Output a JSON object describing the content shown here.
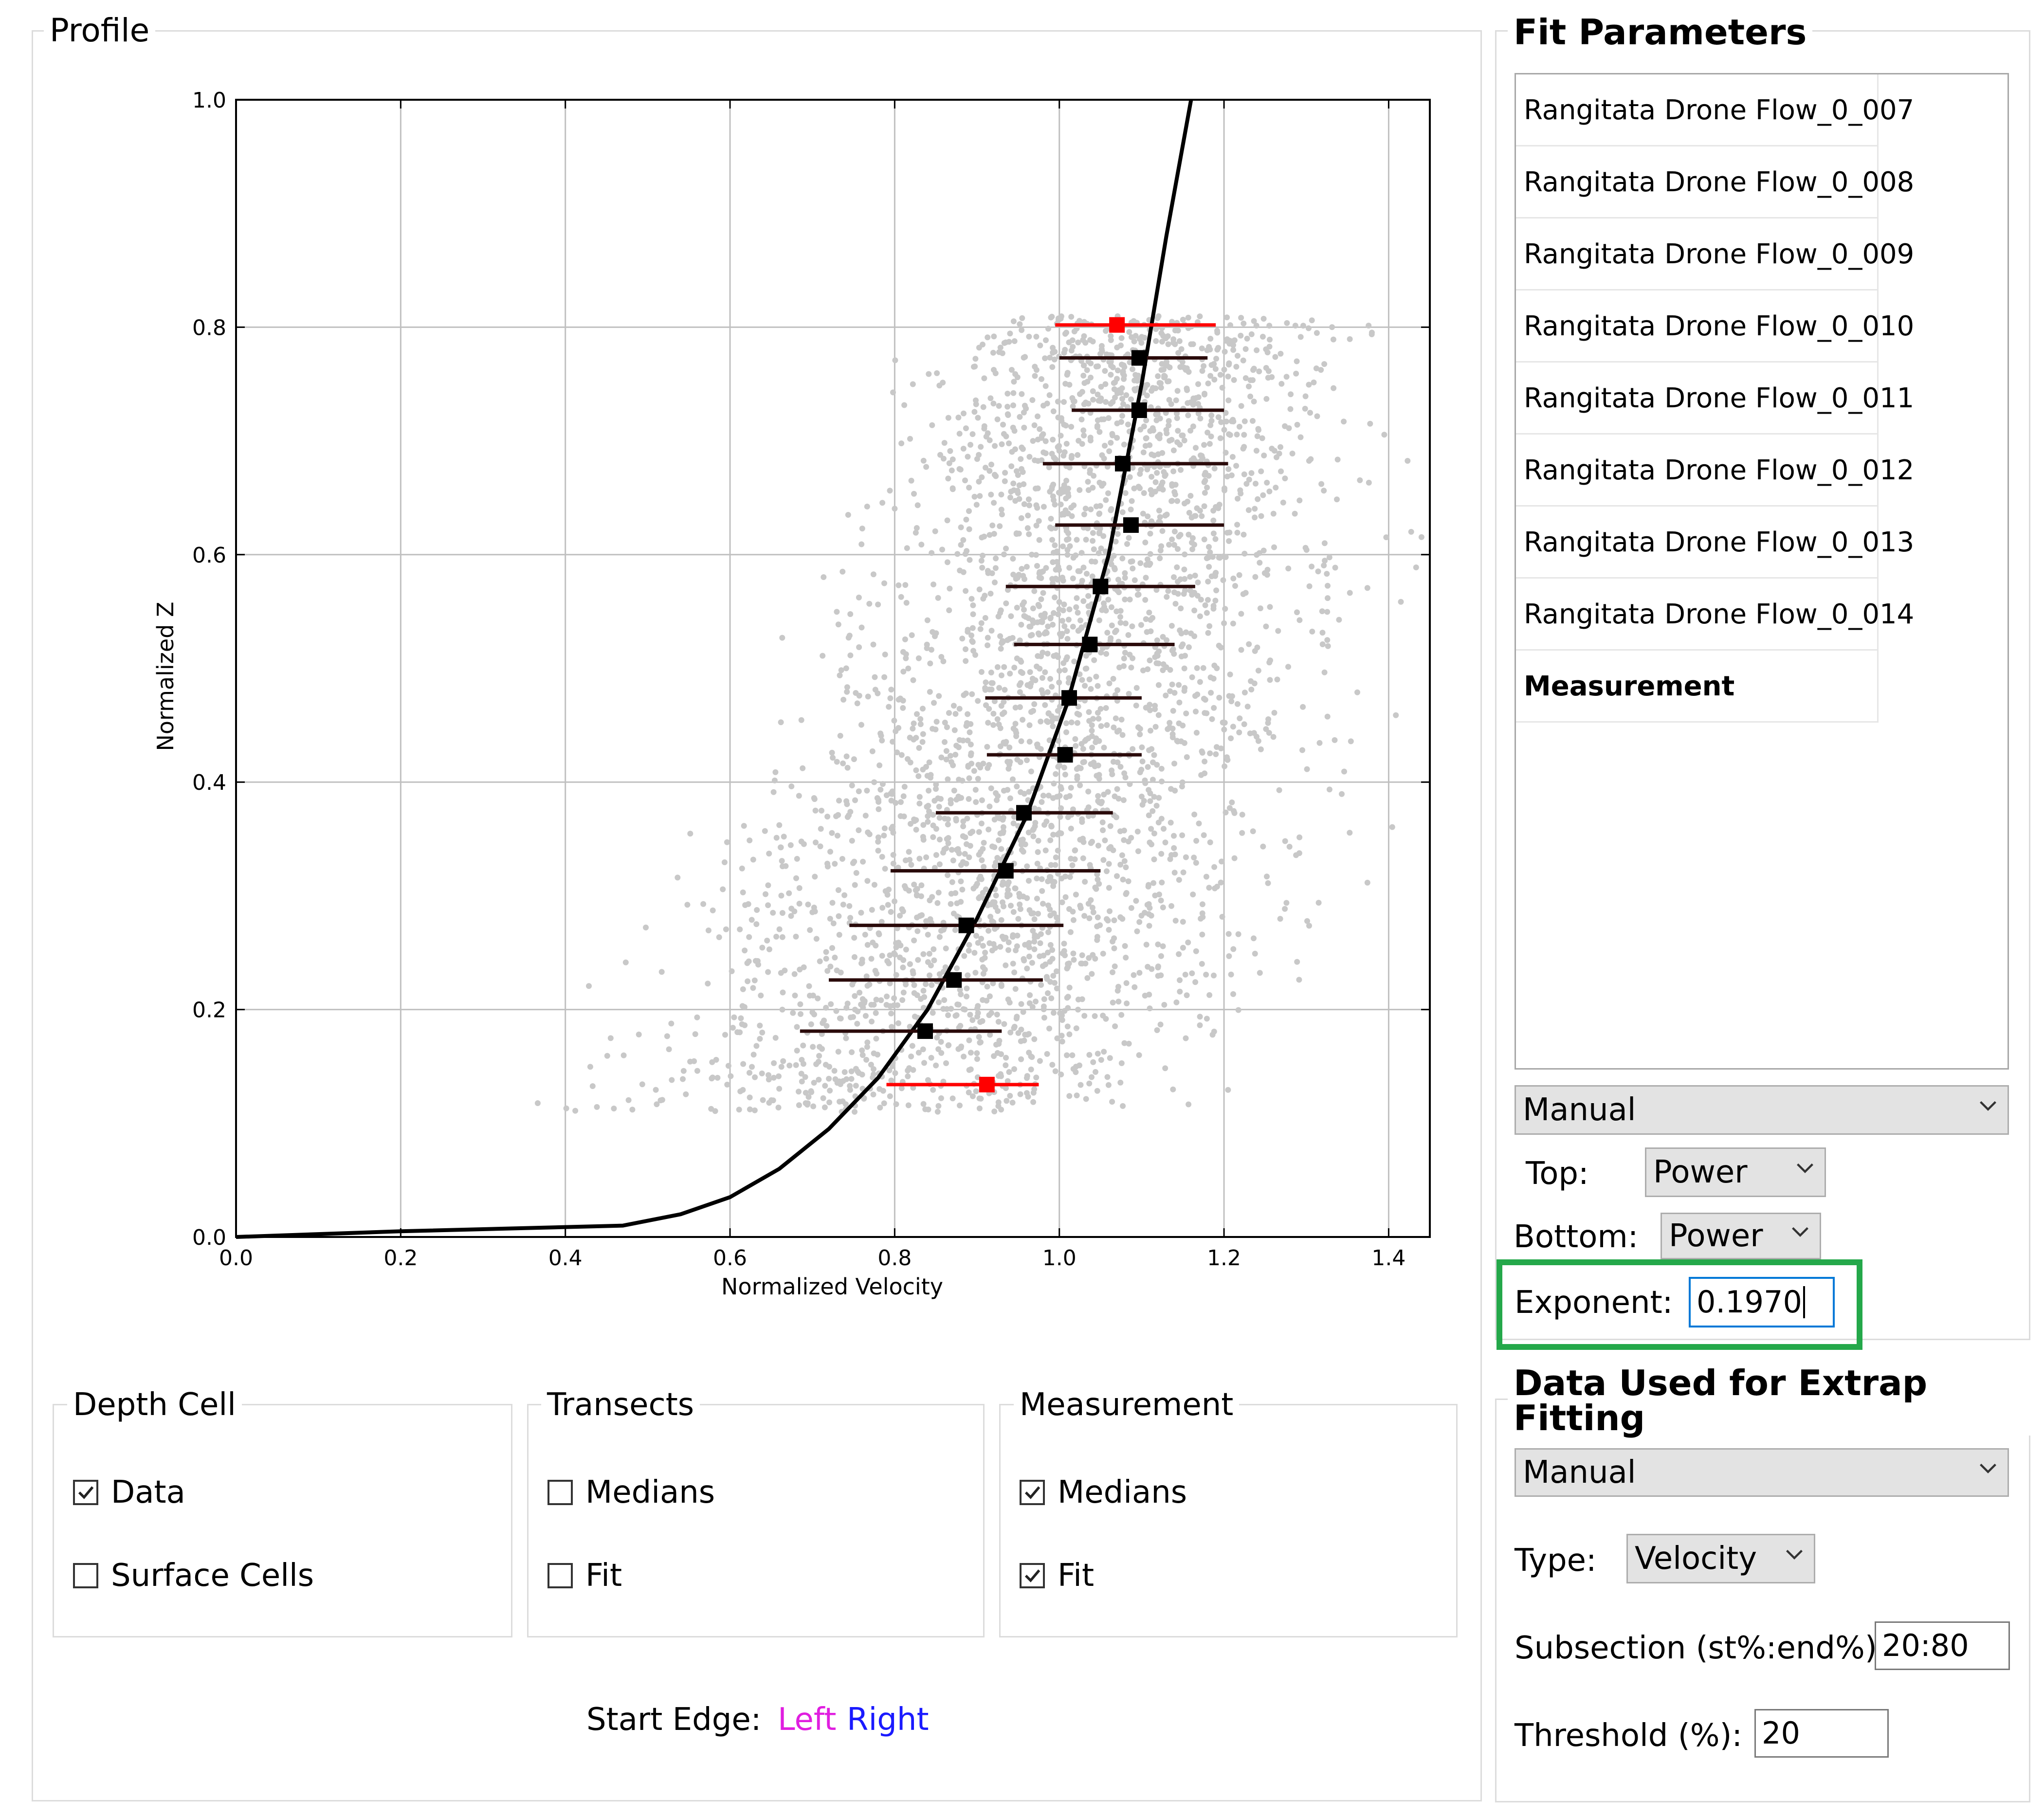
{
  "profile": {
    "title": "Profile",
    "depth_cell": {
      "title": "Depth Cell",
      "data_label": "Data",
      "data_checked": true,
      "surface_label": "Surface Cells",
      "surface_checked": false
    },
    "transects": {
      "title": "Transects",
      "medians_label": "Medians",
      "medians_checked": false,
      "fit_label": "Fit",
      "fit_checked": false
    },
    "measurement": {
      "title": "Measurement",
      "medians_label": "Medians",
      "medians_checked": true,
      "fit_label": "Fit",
      "fit_checked": true
    },
    "start_edge": {
      "label": "Start Edge:",
      "left": "Left",
      "right": "Right",
      "left_color": "#e01ee0",
      "right_color": "#1a1aff"
    }
  },
  "chart_data": {
    "type": "scatter",
    "xlabel": "Normalized Velocity",
    "ylabel": "Normalized Z",
    "xlim": [
      0.0,
      1.45
    ],
    "ylim": [
      0.0,
      1.0
    ],
    "x_ticks": [
      "0.0",
      "0.2",
      "0.4",
      "0.6",
      "0.8",
      "1.0",
      "1.2",
      "1.4"
    ],
    "y_ticks": [
      "0.0",
      "0.2",
      "0.4",
      "0.6",
      "0.8",
      "1.0"
    ],
    "grid": true,
    "scatter_color": "#c8c8c8",
    "fit_curve": {
      "color": "#000000",
      "x": [
        0.0,
        0.2,
        0.47,
        0.54,
        0.6,
        0.66,
        0.72,
        0.78,
        0.84,
        0.9,
        0.96,
        1.01,
        1.06,
        1.1,
        1.13,
        1.16
      ],
      "y": [
        0.0,
        0.005,
        0.01,
        0.02,
        0.035,
        0.06,
        0.095,
        0.14,
        0.2,
        0.28,
        0.37,
        0.47,
        0.6,
        0.75,
        0.88,
        1.0
      ]
    },
    "medians": [
      {
        "z": 0.802,
        "x": 1.07,
        "xmin": 0.995,
        "xmax": 1.19,
        "color": "#ff0000"
      },
      {
        "z": 0.773,
        "x": 1.097,
        "xmin": 1.0,
        "xmax": 1.18,
        "color": "#000000"
      },
      {
        "z": 0.727,
        "x": 1.097,
        "xmin": 1.015,
        "xmax": 1.2,
        "color": "#000000"
      },
      {
        "z": 0.68,
        "x": 1.077,
        "xmin": 0.98,
        "xmax": 1.205,
        "color": "#000000"
      },
      {
        "z": 0.626,
        "x": 1.087,
        "xmin": 0.995,
        "xmax": 1.2,
        "color": "#000000"
      },
      {
        "z": 0.572,
        "x": 1.05,
        "xmin": 0.935,
        "xmax": 1.165,
        "color": "#000000"
      },
      {
        "z": 0.521,
        "x": 1.037,
        "xmin": 0.945,
        "xmax": 1.14,
        "color": "#000000"
      },
      {
        "z": 0.474,
        "x": 1.012,
        "xmin": 0.91,
        "xmax": 1.1,
        "color": "#000000"
      },
      {
        "z": 0.424,
        "x": 1.007,
        "xmin": 0.912,
        "xmax": 1.1,
        "color": "#000000"
      },
      {
        "z": 0.373,
        "x": 0.957,
        "xmin": 0.85,
        "xmax": 1.065,
        "color": "#000000"
      },
      {
        "z": 0.322,
        "x": 0.935,
        "xmin": 0.795,
        "xmax": 1.05,
        "color": "#000000"
      },
      {
        "z": 0.274,
        "x": 0.887,
        "xmin": 0.745,
        "xmax": 1.005,
        "color": "#000000"
      },
      {
        "z": 0.226,
        "x": 0.872,
        "xmin": 0.72,
        "xmax": 0.98,
        "color": "#000000"
      },
      {
        "z": 0.181,
        "x": 0.837,
        "xmin": 0.685,
        "xmax": 0.93,
        "color": "#000000"
      },
      {
        "z": 0.134,
        "x": 0.912,
        "xmin": 0.79,
        "xmax": 0.975,
        "color": "#ff0000"
      }
    ]
  },
  "fit_parameters": {
    "title": "Fit Parameters",
    "items": [
      "Rangitata Drone Flow_0_007",
      "Rangitata Drone Flow_0_008",
      "Rangitata Drone Flow_0_009",
      "Rangitata Drone Flow_0_010",
      "Rangitata Drone Flow_0_011",
      "Rangitata Drone Flow_0_012",
      "Rangitata Drone Flow_0_013",
      "Rangitata Drone Flow_0_014",
      "Measurement"
    ],
    "mode": "Manual",
    "top_label": "Top:",
    "top_value": "Power",
    "bottom_label": "Bottom:",
    "bottom_value": "Power",
    "exponent_label": "Exponent:",
    "exponent_value": "0.1970",
    "highlight_color": "#24a84a"
  },
  "data_used": {
    "title": "Data Used for Extrap Fitting",
    "mode": "Manual",
    "type_label": "Type:",
    "type_value": "Velocity",
    "subsection_label": "Subsection (st%:end%):",
    "subsection_value": "20:80",
    "threshold_label": "Threshold (%):",
    "threshold_value": "20"
  }
}
